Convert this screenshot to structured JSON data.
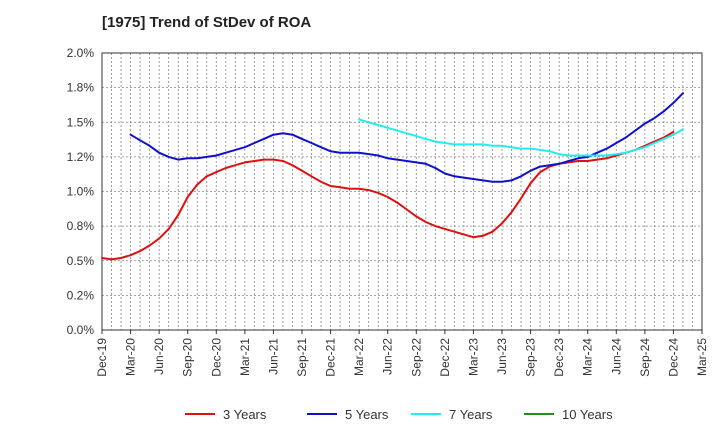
{
  "chart_data": {
    "type": "line",
    "title": "[1975]  Trend of StDev of ROA",
    "xlabel": "",
    "ylabel": "",
    "x_ticks": [
      "Dec-19",
      "Mar-20",
      "Jun-20",
      "Sep-20",
      "Dec-20",
      "Mar-21",
      "Jun-21",
      "Sep-21",
      "Dec-21",
      "Mar-22",
      "Jun-22",
      "Sep-22",
      "Dec-22",
      "Mar-23",
      "Jun-23",
      "Sep-23",
      "Dec-23",
      "Mar-24",
      "Jun-24",
      "Sep-24",
      "Dec-24",
      "Mar-25"
    ],
    "y_ticks": [
      "0.0%",
      "0.2%",
      "0.5%",
      "0.8%",
      "1.0%",
      "1.2%",
      "1.5%",
      "1.8%",
      "2.0%"
    ],
    "ylim": [
      0,
      2.0
    ],
    "grid": true,
    "legend_position": "bottom",
    "series": [
      {
        "name": "3 Years",
        "color": "#dd1111",
        "points": [
          [
            "Dec-19",
            0.52
          ],
          [
            "Jan-20",
            0.51
          ],
          [
            "Feb-20",
            0.52
          ],
          [
            "Mar-20",
            0.54
          ],
          [
            "Apr-20",
            0.57
          ],
          [
            "May-20",
            0.61
          ],
          [
            "Jun-20",
            0.66
          ],
          [
            "Jul-20",
            0.73
          ],
          [
            "Aug-20",
            0.83
          ],
          [
            "Sep-20",
            0.96
          ],
          [
            "Oct-20",
            1.05
          ],
          [
            "Nov-20",
            1.11
          ],
          [
            "Dec-20",
            1.14
          ],
          [
            "Jan-21",
            1.17
          ],
          [
            "Feb-21",
            1.19
          ],
          [
            "Mar-21",
            1.21
          ],
          [
            "Apr-21",
            1.22
          ],
          [
            "May-21",
            1.23
          ],
          [
            "Jun-21",
            1.23
          ],
          [
            "Jul-21",
            1.22
          ],
          [
            "Aug-21",
            1.19
          ],
          [
            "Sep-21",
            1.15
          ],
          [
            "Oct-21",
            1.11
          ],
          [
            "Nov-21",
            1.07
          ],
          [
            "Dec-21",
            1.04
          ],
          [
            "Jan-22",
            1.03
          ],
          [
            "Feb-22",
            1.02
          ],
          [
            "Mar-22",
            1.02
          ],
          [
            "Apr-22",
            1.01
          ],
          [
            "May-22",
            0.99
          ],
          [
            "Jun-22",
            0.96
          ],
          [
            "Jul-22",
            0.92
          ],
          [
            "Aug-22",
            0.87
          ],
          [
            "Sep-22",
            0.82
          ],
          [
            "Oct-22",
            0.78
          ],
          [
            "Nov-22",
            0.75
          ],
          [
            "Dec-22",
            0.73
          ],
          [
            "Jan-23",
            0.71
          ],
          [
            "Feb-23",
            0.69
          ],
          [
            "Mar-23",
            0.67
          ],
          [
            "Apr-23",
            0.68
          ],
          [
            "May-23",
            0.71
          ],
          [
            "Jun-23",
            0.77
          ],
          [
            "Jul-23",
            0.85
          ],
          [
            "Aug-23",
            0.95
          ],
          [
            "Sep-23",
            1.06
          ],
          [
            "Oct-23",
            1.14
          ],
          [
            "Nov-23",
            1.18
          ],
          [
            "Dec-23",
            1.2
          ],
          [
            "Jan-24",
            1.21
          ],
          [
            "Feb-24",
            1.22
          ],
          [
            "Mar-24",
            1.22
          ],
          [
            "Apr-24",
            1.23
          ],
          [
            "May-24",
            1.24
          ],
          [
            "Jun-24",
            1.26
          ],
          [
            "Jul-24",
            1.28
          ],
          [
            "Aug-24",
            1.3
          ],
          [
            "Sep-24",
            1.33
          ],
          [
            "Oct-24",
            1.36
          ],
          [
            "Nov-24",
            1.39
          ],
          [
            "Dec-24",
            1.43
          ]
        ]
      },
      {
        "name": "5 Years",
        "color": "#1111cc",
        "points": [
          [
            "Mar-20",
            1.41
          ],
          [
            "Apr-20",
            1.37
          ],
          [
            "May-20",
            1.33
          ],
          [
            "Jun-20",
            1.28
          ],
          [
            "Jul-20",
            1.25
          ],
          [
            "Aug-20",
            1.23
          ],
          [
            "Sep-20",
            1.24
          ],
          [
            "Oct-20",
            1.24
          ],
          [
            "Nov-20",
            1.25
          ],
          [
            "Dec-20",
            1.26
          ],
          [
            "Jan-21",
            1.28
          ],
          [
            "Feb-21",
            1.3
          ],
          [
            "Mar-21",
            1.32
          ],
          [
            "Apr-21",
            1.35
          ],
          [
            "May-21",
            1.38
          ],
          [
            "Jun-21",
            1.41
          ],
          [
            "Jul-21",
            1.42
          ],
          [
            "Aug-21",
            1.41
          ],
          [
            "Sep-21",
            1.38
          ],
          [
            "Oct-21",
            1.35
          ],
          [
            "Nov-21",
            1.32
          ],
          [
            "Dec-21",
            1.29
          ],
          [
            "Jan-22",
            1.28
          ],
          [
            "Feb-22",
            1.28
          ],
          [
            "Mar-22",
            1.28
          ],
          [
            "Apr-22",
            1.27
          ],
          [
            "May-22",
            1.26
          ],
          [
            "Jun-22",
            1.24
          ],
          [
            "Jul-22",
            1.23
          ],
          [
            "Aug-22",
            1.22
          ],
          [
            "Sep-22",
            1.21
          ],
          [
            "Oct-22",
            1.2
          ],
          [
            "Nov-22",
            1.17
          ],
          [
            "Dec-22",
            1.13
          ],
          [
            "Jan-23",
            1.11
          ],
          [
            "Feb-23",
            1.1
          ],
          [
            "Mar-23",
            1.09
          ],
          [
            "Apr-23",
            1.08
          ],
          [
            "May-23",
            1.07
          ],
          [
            "Jun-23",
            1.07
          ],
          [
            "Jul-23",
            1.08
          ],
          [
            "Aug-23",
            1.11
          ],
          [
            "Sep-23",
            1.15
          ],
          [
            "Oct-23",
            1.18
          ],
          [
            "Nov-23",
            1.19
          ],
          [
            "Dec-23",
            1.2
          ],
          [
            "Jan-24",
            1.22
          ],
          [
            "Feb-24",
            1.24
          ],
          [
            "Mar-24",
            1.25
          ],
          [
            "Apr-24",
            1.28
          ],
          [
            "May-24",
            1.31
          ],
          [
            "Jun-24",
            1.35
          ],
          [
            "Jul-24",
            1.39
          ],
          [
            "Aug-24",
            1.44
          ],
          [
            "Sep-24",
            1.49
          ],
          [
            "Oct-24",
            1.53
          ],
          [
            "Nov-24",
            1.58
          ],
          [
            "Dec-24",
            1.64
          ],
          [
            "Jan-25",
            1.71
          ]
        ]
      },
      {
        "name": "7 Years",
        "color": "#22eeee",
        "points": [
          [
            "Mar-22",
            1.52
          ],
          [
            "Apr-22",
            1.5
          ],
          [
            "May-22",
            1.48
          ],
          [
            "Jun-22",
            1.46
          ],
          [
            "Jul-22",
            1.44
          ],
          [
            "Aug-22",
            1.42
          ],
          [
            "Sep-22",
            1.4
          ],
          [
            "Oct-22",
            1.38
          ],
          [
            "Nov-22",
            1.36
          ],
          [
            "Dec-22",
            1.35
          ],
          [
            "Jan-23",
            1.34
          ],
          [
            "Feb-23",
            1.34
          ],
          [
            "Mar-23",
            1.34
          ],
          [
            "Apr-23",
            1.34
          ],
          [
            "May-23",
            1.33
          ],
          [
            "Jun-23",
            1.33
          ],
          [
            "Jul-23",
            1.32
          ],
          [
            "Aug-23",
            1.31
          ],
          [
            "Sep-23",
            1.31
          ],
          [
            "Oct-23",
            1.3
          ],
          [
            "Nov-23",
            1.29
          ],
          [
            "Dec-23",
            1.27
          ],
          [
            "Jan-24",
            1.26
          ],
          [
            "Feb-24",
            1.26
          ],
          [
            "Mar-24",
            1.26
          ],
          [
            "Apr-24",
            1.26
          ],
          [
            "May-24",
            1.26
          ],
          [
            "Jun-24",
            1.27
          ],
          [
            "Jul-24",
            1.28
          ],
          [
            "Aug-24",
            1.3
          ],
          [
            "Sep-24",
            1.32
          ],
          [
            "Oct-24",
            1.35
          ],
          [
            "Nov-24",
            1.38
          ],
          [
            "Dec-24",
            1.41
          ],
          [
            "Jan-25",
            1.45
          ]
        ]
      },
      {
        "name": "10 Years",
        "color": "#228b22",
        "points": []
      }
    ]
  }
}
